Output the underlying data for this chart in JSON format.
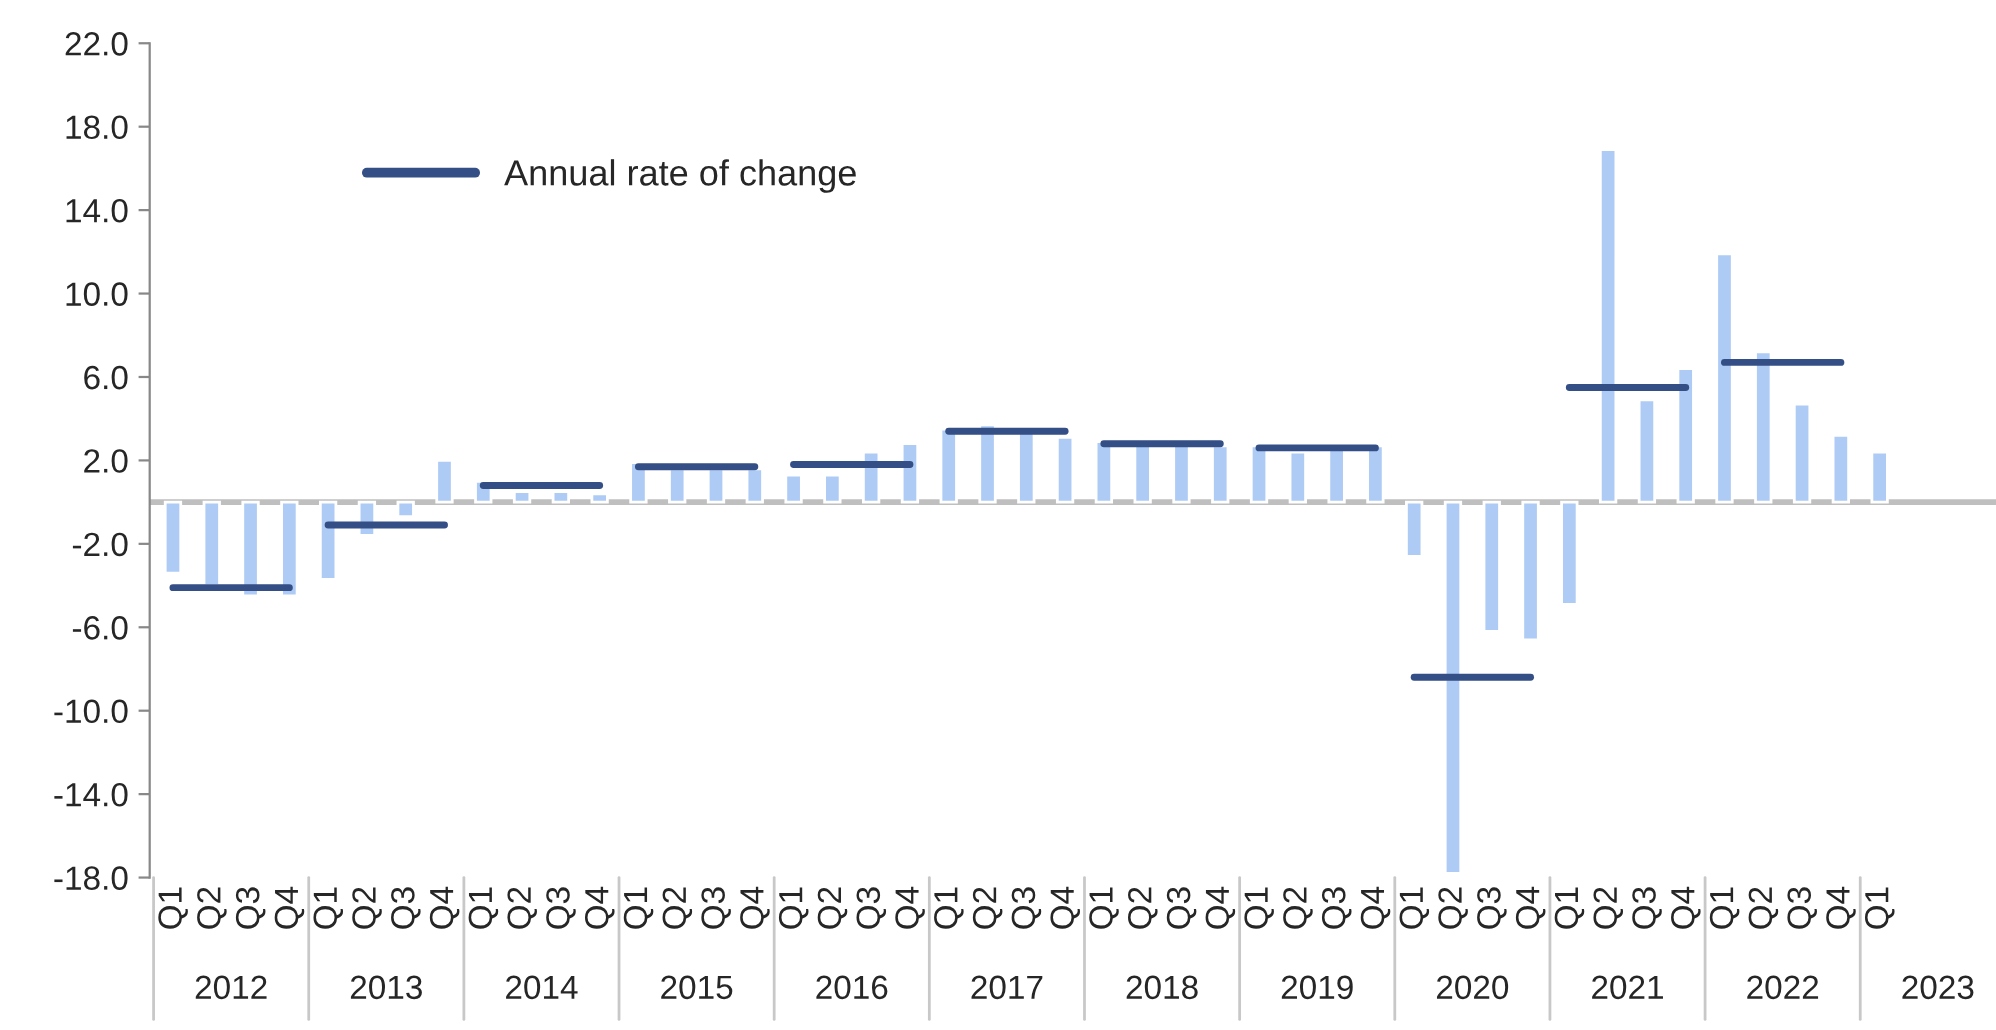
{
  "chart_data": {
    "type": "bar",
    "categories": [
      "Q1",
      "Q2",
      "Q3",
      "Q4",
      "Q1",
      "Q2",
      "Q3",
      "Q4",
      "Q1",
      "Q2",
      "Q3",
      "Q4",
      "Q1",
      "Q2",
      "Q3",
      "Q4",
      "Q1",
      "Q2",
      "Q3",
      "Q4",
      "Q1",
      "Q2",
      "Q3",
      "Q4",
      "Q1",
      "Q2",
      "Q3",
      "Q4",
      "Q1",
      "Q2",
      "Q3",
      "Q4",
      "Q1",
      "Q2",
      "Q3",
      "Q4",
      "Q1",
      "Q2",
      "Q3",
      "Q4",
      "Q1",
      "Q2",
      "Q3",
      "Q4",
      "Q1"
    ],
    "annotations": [
      "2012",
      "2013",
      "2014",
      "2015",
      "2016",
      "2017",
      "2018",
      "2019",
      "2020",
      "2021",
      "2022",
      "2023"
    ],
    "series": [
      {
        "color": "#aecbf5",
        "values": [
          -3.4,
          -4.0,
          -4.5,
          -4.5,
          -3.7,
          -1.6,
          -0.7,
          2.0,
          1.0,
          0.5,
          0.5,
          0.4,
          1.9,
          1.6,
          1.6,
          1.6,
          1.3,
          1.3,
          2.4,
          2.8,
          3.5,
          3.7,
          3.5,
          3.1,
          2.9,
          2.8,
          2.8,
          2.7,
          2.7,
          2.4,
          2.7,
          2.7,
          -2.6,
          -17.8,
          -6.2,
          -6.6,
          -4.9,
          16.9,
          4.9,
          6.4,
          11.9,
          7.2,
          4.7,
          3.2,
          2.4
        ]
      },
      {
        "type": "line",
        "name": "Annual rate of change",
        "color": "#344e86",
        "values": [
          -4.1,
          -4.1,
          -4.1,
          -4.1,
          -1.1,
          -1.1,
          -1.1,
          -1.1,
          0.8,
          0.8,
          0.8,
          0.8,
          1.7,
          1.7,
          1.7,
          1.7,
          1.8,
          1.8,
          1.8,
          1.8,
          3.4,
          3.4,
          3.4,
          3.4,
          2.8,
          2.8,
          2.8,
          2.8,
          2.6,
          2.6,
          2.6,
          2.6,
          -8.4,
          -8.4,
          -8.4,
          -8.4,
          5.5,
          5.5,
          5.5,
          5.5,
          6.7,
          6.7,
          6.7,
          6.7,
          null
        ]
      }
    ],
    "ylim": [
      -18,
      22
    ],
    "yticks": [
      {
        "value": -18,
        "label": "-18.0"
      },
      {
        "value": -14,
        "label": "-14.0"
      },
      {
        "value": -10,
        "label": "-10.0"
      },
      {
        "value": -6,
        "label": "-6.0"
      },
      {
        "value": -2,
        "label": "-2.0"
      },
      {
        "value": 2,
        "label": "2.0"
      },
      {
        "value": 6,
        "label": "6.0"
      },
      {
        "value": 10,
        "label": "10.0"
      },
      {
        "value": 14,
        "label": "14.0"
      },
      {
        "value": 18,
        "label": "18.0"
      },
      {
        "value": 22,
        "label": "22.0"
      }
    ],
    "legend": "top left",
    "line_style": "solid"
  }
}
